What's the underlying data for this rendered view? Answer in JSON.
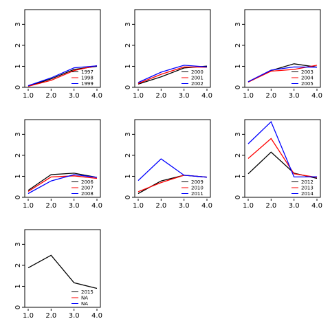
{
  "chart_data": [
    {
      "type": "line",
      "x_ticks": [
        "1.0",
        "2.0",
        "3.0",
        "4.0"
      ],
      "y_ticks": [
        "0",
        "1",
        "2",
        "3"
      ],
      "xlim": [
        1,
        4
      ],
      "ylim": [
        0,
        3.7
      ],
      "legend": "bottom-right",
      "series": [
        {
          "name": "1997",
          "color": "#000000",
          "x": [
            1,
            2,
            3,
            4
          ],
          "y": [
            0.05,
            0.4,
            0.85,
            1.0
          ]
        },
        {
          "name": "1998",
          "color": "#ff0000",
          "x": [
            1,
            2,
            3,
            4
          ],
          "y": [
            0.05,
            0.33,
            0.8,
            1.03
          ]
        },
        {
          "name": "1999",
          "color": "#0000ff",
          "x": [
            1,
            2,
            3,
            4
          ],
          "y": [
            0.08,
            0.45,
            0.93,
            1.02
          ]
        }
      ]
    },
    {
      "type": "line",
      "x_ticks": [
        "1.0",
        "2.0",
        "3.0",
        "4.0"
      ],
      "y_ticks": [
        "0",
        "1",
        "2",
        "3"
      ],
      "xlim": [
        1,
        4
      ],
      "ylim": [
        0,
        3.7
      ],
      "legend": "bottom-right",
      "series": [
        {
          "name": "2000",
          "color": "#000000",
          "x": [
            1,
            2,
            3,
            4
          ],
          "y": [
            0.15,
            0.5,
            0.92,
            1.01
          ]
        },
        {
          "name": "2001",
          "color": "#ff0000",
          "x": [
            1,
            2,
            3,
            4
          ],
          "y": [
            0.18,
            0.62,
            0.97,
            0.96
          ]
        },
        {
          "name": "2002",
          "color": "#0000ff",
          "x": [
            1,
            2,
            3,
            4
          ],
          "y": [
            0.23,
            0.72,
            1.05,
            0.97
          ]
        }
      ]
    },
    {
      "type": "line",
      "x_ticks": [
        "1.0",
        "2.0",
        "3.0",
        "4.0"
      ],
      "y_ticks": [
        "0",
        "1",
        "2",
        "3"
      ],
      "xlim": [
        1,
        4
      ],
      "ylim": [
        0,
        3.7
      ],
      "legend": "bottom-right",
      "series": [
        {
          "name": "2003",
          "color": "#000000",
          "x": [
            1,
            2,
            3,
            4
          ],
          "y": [
            0.25,
            0.8,
            1.12,
            0.96
          ]
        },
        {
          "name": "2004",
          "color": "#ff0000",
          "x": [
            1,
            2,
            3,
            4
          ],
          "y": [
            0.25,
            0.77,
            0.85,
            1.05
          ]
        },
        {
          "name": "2005",
          "color": "#0000ff",
          "x": [
            1,
            2,
            3,
            4
          ],
          "y": [
            0.27,
            0.82,
            0.97,
            0.96
          ]
        }
      ]
    },
    {
      "type": "line",
      "x_ticks": [
        "1.0",
        "2.0",
        "3.0",
        "4.0"
      ],
      "y_ticks": [
        "0",
        "1",
        "2",
        "3"
      ],
      "xlim": [
        1,
        4
      ],
      "ylim": [
        0,
        3.7
      ],
      "legend": "bottom-right",
      "series": [
        {
          "name": "2006",
          "color": "#000000",
          "x": [
            1,
            2,
            3,
            4
          ],
          "y": [
            0.33,
            1.08,
            1.15,
            0.95
          ]
        },
        {
          "name": "2007",
          "color": "#ff0000",
          "x": [
            1,
            2,
            3,
            4
          ],
          "y": [
            0.28,
            0.97,
            1.02,
            0.9
          ]
        },
        {
          "name": "2008",
          "color": "#0000ff",
          "x": [
            1,
            2,
            3,
            4
          ],
          "y": [
            0.18,
            0.78,
            1.08,
            0.95
          ]
        }
      ]
    },
    {
      "type": "line",
      "x_ticks": [
        "1.0",
        "2.0",
        "3.0",
        "4.0"
      ],
      "y_ticks": [
        "0",
        "1",
        "2",
        "3"
      ],
      "xlim": [
        1,
        4
      ],
      "ylim": [
        0,
        3.7
      ],
      "legend": "bottom-right",
      "series": [
        {
          "name": "2009",
          "color": "#000000",
          "x": [
            1,
            2,
            3,
            4
          ],
          "y": [
            0.18,
            0.78,
            1.05,
            0.96
          ]
        },
        {
          "name": "2010",
          "color": "#ff0000",
          "x": [
            1,
            2,
            3,
            4
          ],
          "y": [
            0.27,
            0.7,
            1.05,
            0.96
          ]
        },
        {
          "name": "2011",
          "color": "#0000ff",
          "x": [
            1,
            2,
            3,
            4
          ],
          "y": [
            0.8,
            1.83,
            1.05,
            0.96
          ]
        }
      ]
    },
    {
      "type": "line",
      "x_ticks": [
        "1.0",
        "2.0",
        "3.0",
        "4.0"
      ],
      "y_ticks": [
        "0",
        "1",
        "2",
        "3"
      ],
      "xlim": [
        1,
        4
      ],
      "ylim": [
        0,
        3.7
      ],
      "legend": "bottom-right",
      "series": [
        {
          "name": "2012",
          "color": "#000000",
          "x": [
            1,
            2,
            3,
            4
          ],
          "y": [
            1.12,
            2.15,
            1.15,
            0.9
          ]
        },
        {
          "name": "2013",
          "color": "#ff0000",
          "x": [
            1,
            2,
            3,
            4
          ],
          "y": [
            1.85,
            2.8,
            1.12,
            0.95
          ]
        },
        {
          "name": "2014",
          "color": "#0000ff",
          "x": [
            1,
            2,
            3,
            4
          ],
          "y": [
            2.55,
            3.6,
            0.97,
            0.98
          ]
        }
      ]
    },
    {
      "type": "line",
      "x_ticks": [
        "1.0",
        "2.0",
        "3.0",
        "4.0"
      ],
      "y_ticks": [
        "0",
        "1",
        "2",
        "3"
      ],
      "xlim": [
        1,
        4
      ],
      "ylim": [
        0,
        3.7
      ],
      "legend": "bottom-right",
      "series": [
        {
          "name": "2015",
          "color": "#000000",
          "x": [
            1,
            2,
            3,
            4
          ],
          "y": [
            1.88,
            2.48,
            1.17,
            0.9
          ]
        },
        {
          "name": "NA",
          "color": "#ff0000",
          "x": [],
          "y": []
        },
        {
          "name": "NA",
          "color": "#0000ff",
          "x": [],
          "y": []
        }
      ]
    }
  ]
}
